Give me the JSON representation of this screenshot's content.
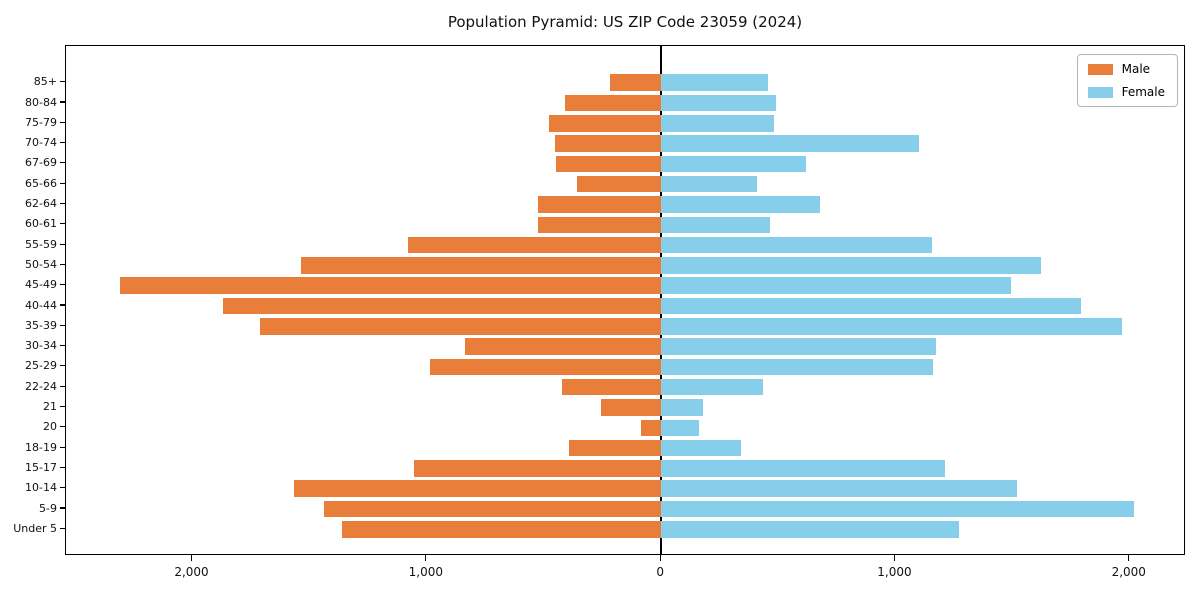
{
  "title": "Population Pyramid: US ZIP Code 23059 (2024)",
  "legend": {
    "male_label": "Male",
    "female_label": "Female"
  },
  "colors": {
    "male": "#e87e3a",
    "female": "#87ceeb",
    "axis": "#000000",
    "background": "#ffffff"
  },
  "chart_data": {
    "type": "bar",
    "subtype": "population-pyramid",
    "orientation": "horizontal",
    "title": "Population Pyramid: US ZIP Code 23059 (2024)",
    "categories_order": "top-to-bottom",
    "categories": [
      "85+",
      "80-84",
      "75-79",
      "70-74",
      "67-69",
      "65-66",
      "62-64",
      "60-61",
      "55-59",
      "50-54",
      "45-49",
      "40-44",
      "35-39",
      "30-34",
      "25-29",
      "22-24",
      "21",
      "20",
      "18-19",
      "15-17",
      "10-14",
      "5-9",
      "Under 5"
    ],
    "series": [
      {
        "name": "Male",
        "side": "left",
        "color": "#e87e3a",
        "values": [
          220,
          410,
          480,
          455,
          450,
          360,
          525,
          525,
          1080,
          1535,
          2310,
          1870,
          1710,
          835,
          985,
          425,
          255,
          85,
          395,
          1055,
          1565,
          1440,
          1360
        ]
      },
      {
        "name": "Female",
        "side": "right",
        "color": "#87ceeb",
        "values": [
          455,
          490,
          480,
          1100,
          620,
          410,
          680,
          465,
          1155,
          1620,
          1495,
          1790,
          1965,
          1175,
          1160,
          435,
          178,
          163,
          340,
          1210,
          1520,
          2020,
          1270
        ]
      }
    ],
    "xlim": [
      -2540,
      2240
    ],
    "x_tick_values": [
      -2000,
      -1000,
      0,
      1000,
      2000
    ],
    "x_tick_labels": [
      "2,000",
      "1,000",
      "0",
      "1,000",
      "2,000"
    ],
    "xlabel": "",
    "ylabel": "",
    "grid": false,
    "legend_position": "upper right",
    "zero_line": true
  }
}
